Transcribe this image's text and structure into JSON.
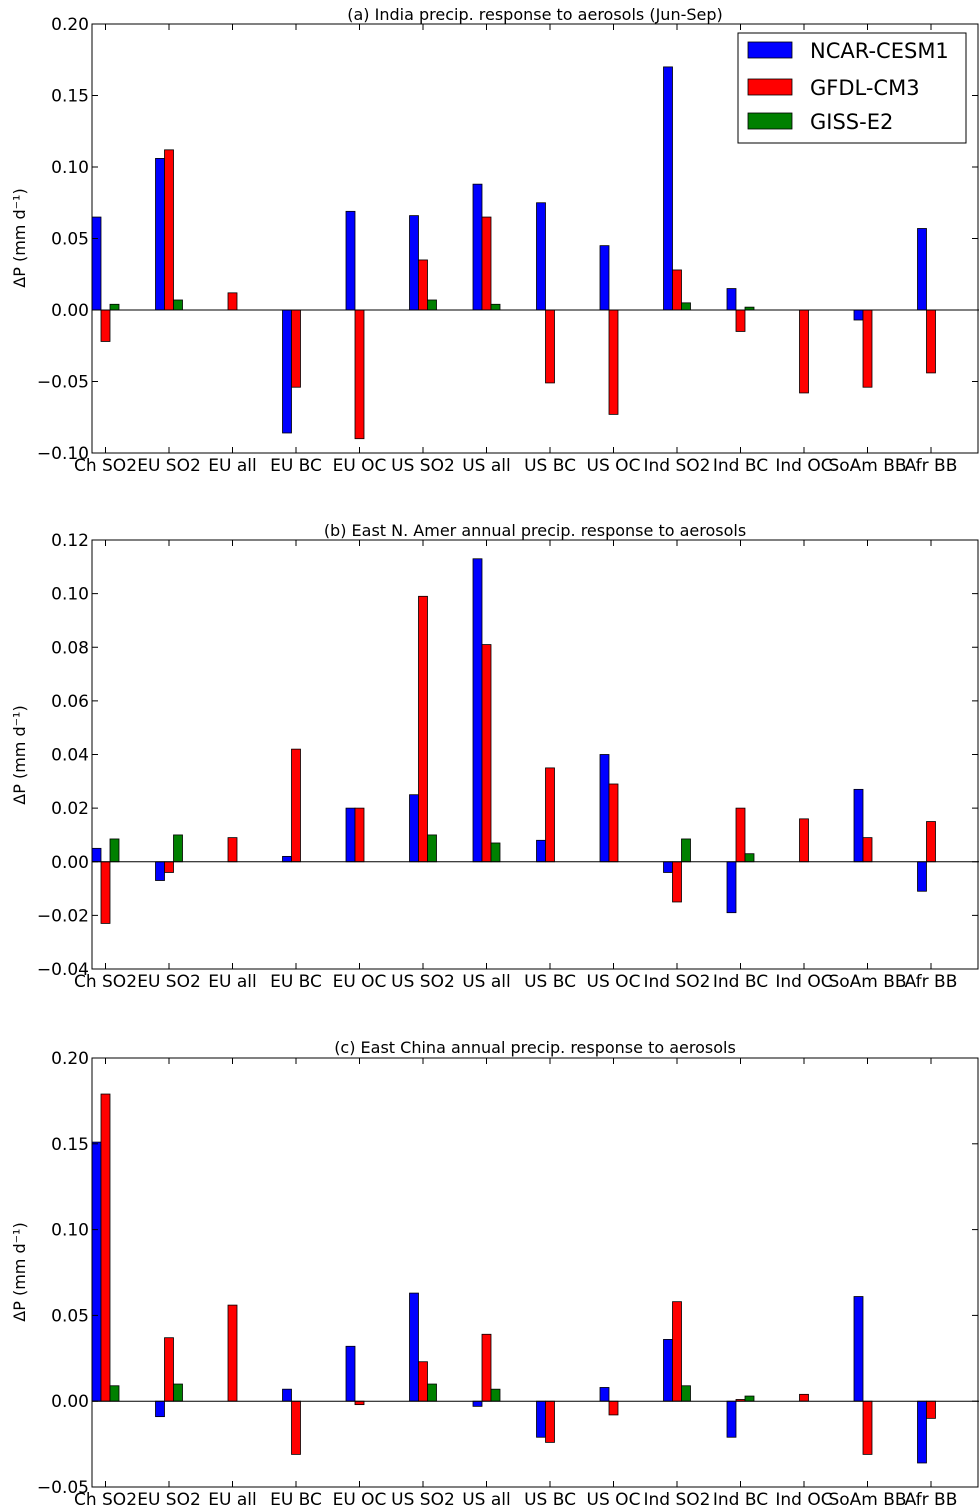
{
  "categories": [
    "Ch SO2",
    "EU SO2",
    "EU all",
    "EU BC",
    "EU OC",
    "US SO2",
    "US all",
    "US BC",
    "US OC",
    "Ind SO2",
    "Ind BC",
    "Ind OC",
    "SoAm BB",
    "Afr BB"
  ],
  "legend": {
    "placement": "top-right",
    "entries": [
      {
        "name": "NCAR-CESM1",
        "color": "#0000ff"
      },
      {
        "name": "GFDL-CM3",
        "color": "#ff0000"
      },
      {
        "name": "GISS-E2",
        "color": "#008000"
      }
    ]
  },
  "chart_data": [
    {
      "type": "bar",
      "title": "(a) India precip. response to aerosols (Jun-Sep)",
      "ylabel": "ΔP (mm d⁻¹)",
      "ylim": [
        -0.1,
        0.2
      ],
      "yticks": [
        -0.1,
        -0.05,
        0.0,
        0.05,
        0.1,
        0.15,
        0.2
      ],
      "ytick_labels": [
        "−0.10",
        "−0.05",
        "0.00",
        "0.05",
        "0.10",
        "0.15",
        "0.20"
      ],
      "grid": false,
      "series": [
        {
          "name": "NCAR-CESM1",
          "values": [
            0.065,
            0.106,
            0,
            -0.086,
            0.069,
            0.066,
            0.088,
            0.075,
            0.045,
            0.17,
            0.015,
            0,
            -0.007,
            0.057
          ]
        },
        {
          "name": "GFDL-CM3",
          "values": [
            -0.022,
            0.112,
            0.012,
            -0.054,
            -0.09,
            0.035,
            0.065,
            -0.051,
            -0.073,
            0.028,
            -0.015,
            -0.058,
            -0.054,
            -0.044
          ]
        },
        {
          "name": "GISS-E2",
          "values": [
            0.004,
            0.007,
            0,
            0,
            0,
            0.007,
            0.004,
            0,
            0,
            0.005,
            0.002,
            0,
            0,
            0
          ]
        }
      ]
    },
    {
      "type": "bar",
      "title": "(b) East N. Amer annual precip. response to aerosols",
      "ylabel": "ΔP (mm d⁻¹)",
      "ylim": [
        -0.04,
        0.12
      ],
      "yticks": [
        -0.04,
        -0.02,
        0.0,
        0.02,
        0.04,
        0.06,
        0.08,
        0.1,
        0.12
      ],
      "ytick_labels": [
        "−0.04",
        "−0.02",
        "0.00",
        "0.02",
        "0.04",
        "0.06",
        "0.08",
        "0.10",
        "0.12"
      ],
      "grid": false,
      "series": [
        {
          "name": "NCAR-CESM1",
          "values": [
            0.005,
            -0.007,
            0,
            0.002,
            0.02,
            0.025,
            0.113,
            0.008,
            0.04,
            -0.004,
            -0.019,
            0,
            0.027,
            -0.011
          ]
        },
        {
          "name": "GFDL-CM3",
          "values": [
            -0.023,
            -0.004,
            0.009,
            0.042,
            0.02,
            0.099,
            0.081,
            0.035,
            0.029,
            -0.015,
            0.02,
            0.016,
            0.009,
            0.015
          ]
        },
        {
          "name": "GISS-E2",
          "values": [
            0.0085,
            0.01,
            0,
            0,
            0,
            0.01,
            0.007,
            0,
            0,
            0.0085,
            0.003,
            0,
            0,
            0
          ]
        }
      ]
    },
    {
      "type": "bar",
      "title": "(c) East China annual precip. response to aerosols",
      "ylabel": "ΔP (mm d⁻¹)",
      "ylim": [
        -0.05,
        0.2
      ],
      "yticks": [
        -0.05,
        0.0,
        0.05,
        0.1,
        0.15,
        0.2
      ],
      "ytick_labels": [
        "−0.05",
        "0.00",
        "0.05",
        "0.10",
        "0.15",
        "0.20"
      ],
      "grid": false,
      "series": [
        {
          "name": "NCAR-CESM1",
          "values": [
            0.151,
            -0.009,
            0,
            0.007,
            0.032,
            0.063,
            -0.003,
            -0.021,
            0.008,
            0.036,
            -0.021,
            0,
            0.061,
            -0.036
          ]
        },
        {
          "name": "GFDL-CM3",
          "values": [
            0.179,
            0.037,
            0.056,
            -0.031,
            -0.002,
            0.023,
            0.039,
            -0.024,
            -0.008,
            0.058,
            0.001,
            0.004,
            -0.031,
            -0.01
          ]
        },
        {
          "name": "GISS-E2",
          "values": [
            0.009,
            0.01,
            0,
            0,
            0,
            0.01,
            0.007,
            0,
            0,
            0.009,
            0.003,
            0,
            0,
            0
          ]
        }
      ]
    }
  ]
}
